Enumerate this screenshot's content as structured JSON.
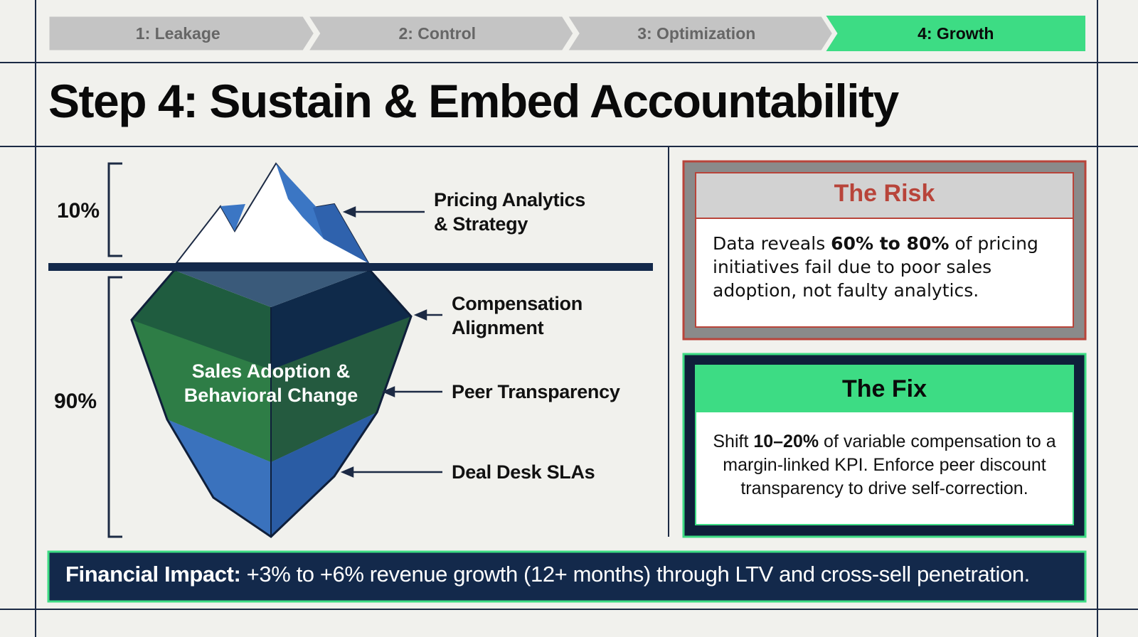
{
  "steps": [
    "1: Leakage",
    "2: Control",
    "3: Optimization",
    "4: Growth"
  ],
  "title": "Step 4: Sustain & Embed Accountability",
  "iceberg": {
    "above_percent": "10%",
    "below_percent": "90%",
    "center_label": [
      "Sales Adoption &",
      "Behavioral Change"
    ],
    "labels": [
      [
        "Pricing Analytics",
        "& Strategy"
      ],
      [
        "Compensation",
        "Alignment"
      ],
      [
        "Peer Transparency"
      ],
      [
        "Deal Desk SLAs"
      ]
    ]
  },
  "risk": {
    "title": "The Risk",
    "body": [
      "Data reveals ",
      "60% to 80%",
      " of pricing initiatives fail due to poor sales adoption, not faulty analytics."
    ]
  },
  "fix": {
    "title": "The Fix",
    "body": [
      "Shift ",
      "10–20%",
      " of variable compensation to a margin-linked KPI. Enforce peer discount transparency to drive self-correction."
    ]
  },
  "impact": [
    "Financial Impact:",
    " +3% to +6% revenue growth (12+ months) through LTV and cross-sell penetration."
  ]
}
